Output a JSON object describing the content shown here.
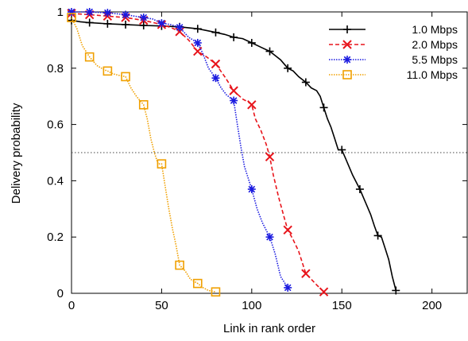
{
  "chart_data": {
    "type": "line",
    "xlabel": "Link in rank order",
    "ylabel": "Delivery probability",
    "xlim": [
      0,
      220
    ],
    "ylim": [
      0,
      1
    ],
    "xticks": [
      0,
      50,
      100,
      150,
      200
    ],
    "yticks": [
      0,
      0.2,
      0.4,
      0.6,
      0.8,
      1
    ],
    "xtick_labels": [
      "0",
      "50",
      "100",
      "150",
      "200"
    ],
    "ytick_labels": [
      "0",
      "0.2",
      "0.4",
      "0.6",
      "0.8",
      "1"
    ],
    "reference_line": {
      "y": 0.5,
      "style": "dotted"
    },
    "legend_position": "top-right",
    "grid": false,
    "series": [
      {
        "name": "1.0 Mbps",
        "color": "#000000",
        "line_style": "solid",
        "marker": "plus",
        "marker_x": [
          0,
          10,
          20,
          30,
          40,
          50,
          60,
          70,
          80,
          90,
          100,
          110,
          120,
          130,
          140,
          150,
          160,
          170,
          180
        ],
        "x": [
          0,
          5,
          10,
          20,
          30,
          40,
          50,
          60,
          70,
          78,
          85,
          90,
          95,
          100,
          105,
          110,
          113,
          116,
          120,
          123,
          126,
          130,
          133,
          136,
          138,
          140,
          142,
          144,
          146,
          148,
          150,
          152,
          154,
          156,
          158,
          160,
          162,
          164,
          166,
          168,
          170,
          172,
          174,
          176,
          178,
          180
        ],
        "y": [
          0.97,
          0.965,
          0.962,
          0.958,
          0.955,
          0.952,
          0.95,
          0.947,
          0.94,
          0.93,
          0.92,
          0.91,
          0.905,
          0.89,
          0.875,
          0.86,
          0.845,
          0.83,
          0.8,
          0.79,
          0.77,
          0.75,
          0.73,
          0.72,
          0.7,
          0.66,
          0.62,
          0.59,
          0.55,
          0.51,
          0.51,
          0.48,
          0.45,
          0.42,
          0.395,
          0.37,
          0.34,
          0.31,
          0.28,
          0.24,
          0.205,
          0.2,
          0.16,
          0.12,
          0.06,
          0.01
        ]
      },
      {
        "name": "2.0 Mbps",
        "color": "#e8141b",
        "line_style": "dashed",
        "marker": "x",
        "marker_x": [
          0,
          10,
          20,
          30,
          40,
          50,
          60,
          70,
          80,
          90,
          100,
          110,
          120,
          130,
          140
        ],
        "x": [
          0,
          10,
          20,
          30,
          40,
          50,
          55,
          60,
          65,
          70,
          75,
          80,
          85,
          90,
          95,
          98,
          100,
          102,
          105,
          108,
          110,
          112,
          115,
          118,
          120,
          123,
          126,
          130,
          133,
          136,
          140
        ],
        "y": [
          0.995,
          0.99,
          0.985,
          0.98,
          0.97,
          0.955,
          0.945,
          0.93,
          0.9,
          0.86,
          0.84,
          0.815,
          0.77,
          0.72,
          0.69,
          0.68,
          0.67,
          0.62,
          0.58,
          0.53,
          0.485,
          0.42,
          0.34,
          0.27,
          0.225,
          0.19,
          0.15,
          0.07,
          0.05,
          0.03,
          0.005
        ]
      },
      {
        "name": "5.5 Mbps",
        "color": "#1a1ae0",
        "line_style": "dotted",
        "marker": "asterisk",
        "marker_x": [
          0,
          10,
          20,
          30,
          40,
          50,
          60,
          70,
          80,
          90,
          100,
          110,
          120
        ],
        "x": [
          0,
          10,
          20,
          30,
          40,
          45,
          50,
          55,
          60,
          65,
          70,
          73,
          76,
          80,
          83,
          86,
          90,
          92,
          94,
          96,
          98,
          100,
          103,
          106,
          110,
          113,
          116,
          120
        ],
        "y": [
          1.0,
          1.0,
          0.997,
          0.99,
          0.98,
          0.975,
          0.96,
          0.955,
          0.945,
          0.91,
          0.89,
          0.85,
          0.8,
          0.765,
          0.73,
          0.705,
          0.685,
          0.6,
          0.52,
          0.45,
          0.41,
          0.37,
          0.3,
          0.25,
          0.2,
          0.14,
          0.06,
          0.02
        ]
      },
      {
        "name": "11.0 Mbps",
        "color": "#f0a000",
        "line_style": "dotted",
        "marker": "square",
        "marker_x": [
          0,
          10,
          20,
          30,
          40,
          50,
          60,
          70,
          80
        ],
        "x": [
          0,
          3,
          6,
          10,
          14,
          18,
          20,
          23,
          26,
          30,
          33,
          36,
          40,
          42,
          44,
          46,
          48,
          50,
          52,
          54,
          56,
          58,
          60,
          63,
          66,
          70,
          73,
          76,
          80
        ],
        "y": [
          0.98,
          0.94,
          0.88,
          0.84,
          0.81,
          0.795,
          0.79,
          0.78,
          0.775,
          0.77,
          0.73,
          0.7,
          0.67,
          0.62,
          0.55,
          0.5,
          0.46,
          0.46,
          0.38,
          0.3,
          0.23,
          0.17,
          0.1,
          0.08,
          0.05,
          0.035,
          0.02,
          0.01,
          0.005
        ]
      }
    ]
  }
}
